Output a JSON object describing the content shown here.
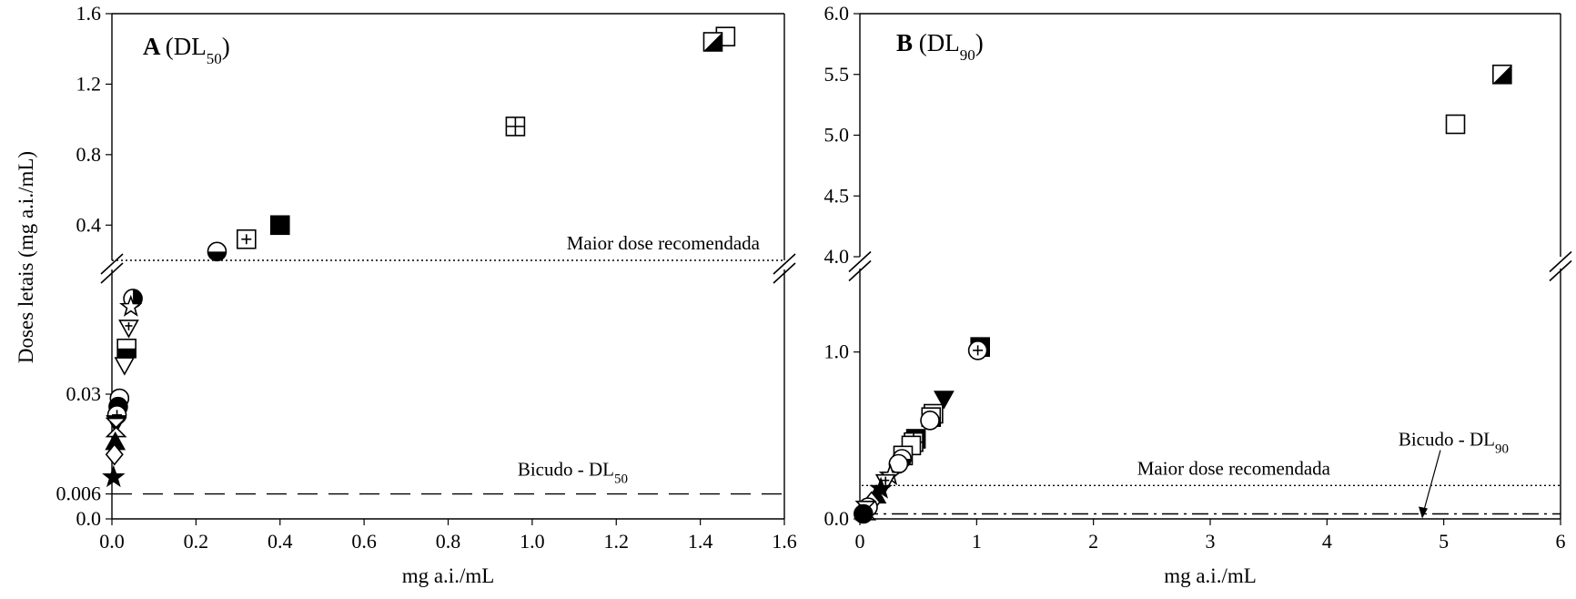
{
  "chart_data": [
    {
      "type": "scatter",
      "panel_label": "A",
      "panel_title": "(DL",
      "panel_title_sub": "50",
      "panel_title_end": ")",
      "xlabel": "mg a.i./mL",
      "ylabel": "Doses letais  (mg a.i./mL)",
      "xlim": [
        0,
        1.6
      ],
      "x_ticks": [
        "0.0",
        "0.2",
        "0.4",
        "0.6",
        "0.8",
        "1.0",
        "1.2",
        "1.4",
        "1.6"
      ],
      "y_axis_break": true,
      "ylim_lower": [
        0,
        0.06
      ],
      "ylim_upper": [
        0.2,
        1.6
      ],
      "y_ticks_lower": [
        "0.0",
        "0.006",
        "0.03"
      ],
      "y_ticks_upper": [
        "0.4",
        "0.8",
        "1.2",
        "1.6"
      ],
      "ref_lines": [
        {
          "label": "Maior dose recomendada",
          "y": 0.2,
          "style": "dotted"
        },
        {
          "label": "Bicudo - DL",
          "label_sub": "50",
          "y": 0.006,
          "style": "dashed"
        }
      ],
      "points": [
        {
          "x": 1.46,
          "y": 1.47,
          "marker": "square-open"
        },
        {
          "x": 1.43,
          "y": 1.44,
          "marker": "square-half-diag"
        },
        {
          "x": 0.96,
          "y": 0.96,
          "marker": "square-grid"
        },
        {
          "x": 0.4,
          "y": 0.4,
          "marker": "square-filled"
        },
        {
          "x": 0.32,
          "y": 0.32,
          "marker": "square-plus"
        },
        {
          "x": 0.25,
          "y": 0.25,
          "marker": "circle-half-bottom"
        },
        {
          "x": 0.05,
          "y": 0.053,
          "marker": "circle-half-right"
        },
        {
          "x": 0.045,
          "y": 0.051,
          "marker": "star-open"
        },
        {
          "x": 0.04,
          "y": 0.046,
          "marker": "triangle-down-plus"
        },
        {
          "x": 0.035,
          "y": 0.041,
          "marker": "square-half-bottom"
        },
        {
          "x": 0.03,
          "y": 0.037,
          "marker": "triangle-down-open"
        },
        {
          "x": 0.018,
          "y": 0.029,
          "marker": "circle-open"
        },
        {
          "x": 0.015,
          "y": 0.027,
          "marker": "circle-filled"
        },
        {
          "x": 0.012,
          "y": 0.025,
          "marker": "circle-plus"
        },
        {
          "x": 0.01,
          "y": 0.023,
          "marker": "triangle-down-filled"
        },
        {
          "x": 0.01,
          "y": 0.022,
          "marker": "hourglass"
        },
        {
          "x": 0.008,
          "y": 0.0185,
          "marker": "triangle-up-filled"
        },
        {
          "x": 0.006,
          "y": 0.0155,
          "marker": "diamond-open"
        },
        {
          "x": 0.004,
          "y": 0.01,
          "marker": "star-filled"
        }
      ]
    },
    {
      "type": "scatter",
      "panel_label": "B",
      "panel_title": "(DL",
      "panel_title_sub": "90",
      "panel_title_end": ")",
      "xlabel": "mg a.i./mL",
      "ylabel": "",
      "xlim": [
        0,
        6
      ],
      "x_ticks": [
        "0",
        "1",
        "2",
        "3",
        "4",
        "5",
        "6"
      ],
      "y_axis_break": true,
      "ylim_lower": [
        0,
        1.5
      ],
      "ylim_upper": [
        4.0,
        6.0
      ],
      "y_ticks_lower": [
        "0.0",
        "1.0"
      ],
      "y_ticks_upper": [
        "4.0",
        "4.5",
        "5.0",
        "5.5",
        "6.0"
      ],
      "ref_lines": [
        {
          "label": "Maior dose recomendada",
          "y": 0.2,
          "style": "dotted"
        },
        {
          "label": "Bicudo - DL",
          "label_sub": "90",
          "y": 0.03,
          "style": "dashdot"
        }
      ],
      "points": [
        {
          "x": 5.5,
          "y": 5.5,
          "marker": "square-half-diag"
        },
        {
          "x": 5.1,
          "y": 5.09,
          "marker": "square-open"
        },
        {
          "x": 1.03,
          "y": 1.03,
          "marker": "square-filled"
        },
        {
          "x": 1.01,
          "y": 1.01,
          "marker": "circle-plus"
        },
        {
          "x": 0.72,
          "y": 0.72,
          "marker": "triangle-down-filled"
        },
        {
          "x": 0.63,
          "y": 0.63,
          "marker": "square-open"
        },
        {
          "x": 0.61,
          "y": 0.61,
          "marker": "square-half-bottom"
        },
        {
          "x": 0.6,
          "y": 0.59,
          "marker": "circle-open"
        },
        {
          "x": 0.48,
          "y": 0.48,
          "marker": "square-filled"
        },
        {
          "x": 0.46,
          "y": 0.46,
          "marker": "square-grid"
        },
        {
          "x": 0.44,
          "y": 0.44,
          "marker": "square-open"
        },
        {
          "x": 0.37,
          "y": 0.38,
          "marker": "square-plus"
        },
        {
          "x": 0.36,
          "y": 0.36,
          "marker": "circle-half-bottom"
        },
        {
          "x": 0.33,
          "y": 0.33,
          "marker": "circle-open"
        },
        {
          "x": 0.26,
          "y": 0.26,
          "marker": "star-open"
        },
        {
          "x": 0.22,
          "y": 0.22,
          "marker": "triangle-down-plus"
        },
        {
          "x": 0.18,
          "y": 0.18,
          "marker": "star-filled"
        },
        {
          "x": 0.14,
          "y": 0.14,
          "marker": "triangle-up-filled"
        },
        {
          "x": 0.1,
          "y": 0.1,
          "marker": "diamond-open"
        },
        {
          "x": 0.07,
          "y": 0.07,
          "marker": "circle-open"
        },
        {
          "x": 0.05,
          "y": 0.05,
          "marker": "hourglass"
        },
        {
          "x": 0.03,
          "y": 0.03,
          "marker": "circle-filled"
        }
      ]
    }
  ]
}
